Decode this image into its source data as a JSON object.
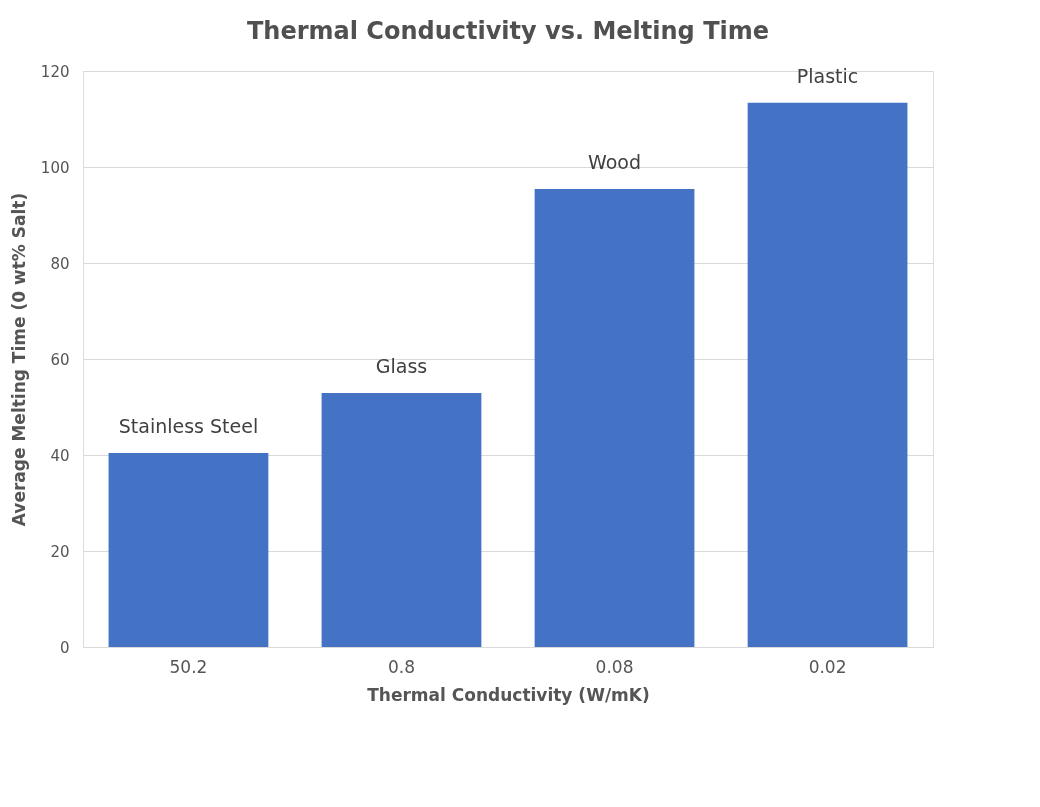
{
  "chart_data": {
    "type": "bar",
    "title": "Thermal Conductivity vs. Melting Time",
    "xlabel": "Thermal Conductivity (W/mK)",
    "ylabel": "Average Melting Time (0 wt% Salt)",
    "categories": [
      "50.2",
      "0.8",
      "0.08",
      "0.02"
    ],
    "values": [
      40.4,
      52.9,
      95.4,
      113.4
    ],
    "color": "#4472c4",
    "ylim": [
      0,
      120
    ],
    "yticks": [
      0,
      20,
      40,
      60,
      80,
      100,
      120
    ],
    "grid": "y",
    "annotations": [
      {
        "text": "Stainless Steel",
        "x": "50.2",
        "y": 40.4
      },
      {
        "text": "Glass",
        "x": "0.8",
        "y": 52.9
      },
      {
        "text": "Wood",
        "x": "0.08",
        "y": 95.4
      },
      {
        "text": "Plastic",
        "x": "0.02",
        "y": 113.4
      }
    ]
  }
}
